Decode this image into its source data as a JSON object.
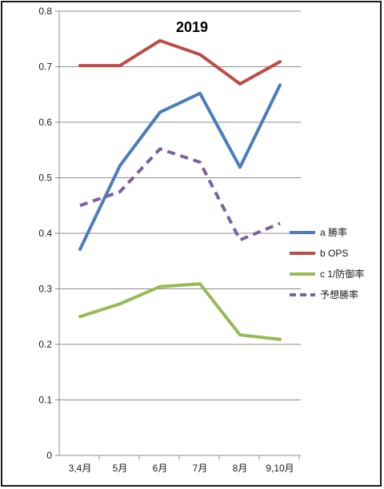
{
  "chart_data": {
    "type": "line",
    "title": "2019",
    "xlabel": "",
    "ylabel": "",
    "categories": [
      "3,4月",
      "5月",
      "6月",
      "7月",
      "8月",
      "9,10月"
    ],
    "ylim": [
      0,
      0.8
    ],
    "yticks": [
      "0",
      "0.1",
      "0.2",
      "0.3",
      "0.4",
      "0.5",
      "0.6",
      "0.7",
      "0.8"
    ],
    "grid": true,
    "legend_position": "right",
    "series": [
      {
        "name": "a 勝率",
        "values": [
          0.371,
          0.522,
          0.618,
          0.652,
          0.519,
          0.667
        ],
        "color": "#4a7ebb",
        "dashed": false
      },
      {
        "name": "b OPS",
        "values": [
          0.702,
          0.702,
          0.747,
          0.722,
          0.669,
          0.709
        ],
        "color": "#be4b48",
        "dashed": false
      },
      {
        "name": "c 1/防御率",
        "values": [
          0.25,
          0.273,
          0.304,
          0.309,
          0.217,
          0.209
        ],
        "color": "#98b954",
        "dashed": false
      },
      {
        "name": "予想勝率",
        "values": [
          0.45,
          0.475,
          0.552,
          0.528,
          0.388,
          0.418
        ],
        "color": "#7d60a0",
        "dashed": true
      }
    ]
  }
}
